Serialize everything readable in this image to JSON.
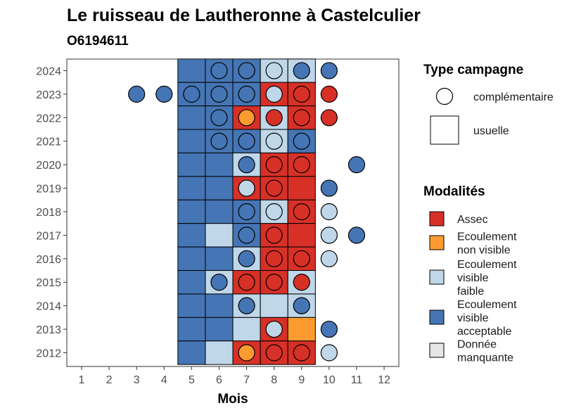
{
  "chart_data": {
    "type": "heatmap",
    "title": "Le ruisseau de Lautheronne à Castelculier",
    "subtitle": "O6194611",
    "xlabel": "Mois",
    "x_ticks": [
      "1",
      "2",
      "3",
      "4",
      "5",
      "6",
      "7",
      "8",
      "9",
      "10",
      "11",
      "12"
    ],
    "y_ticks": [
      "2012",
      "2013",
      "2014",
      "2015",
      "2016",
      "2017",
      "2018",
      "2019",
      "2020",
      "2021",
      "2022",
      "2023",
      "2024"
    ],
    "legend_shape": {
      "title": "Type campagne",
      "items": [
        {
          "key": "complementaire",
          "label": "complémentaire",
          "shape": "circle"
        },
        {
          "key": "usuelle",
          "label": "usuelle",
          "shape": "square"
        }
      ]
    },
    "legend_fill": {
      "title": "Modalités",
      "items": [
        {
          "key": "assec",
          "lines": [
            "Assec"
          ],
          "color": "#d73027"
        },
        {
          "key": "nonvisible",
          "lines": [
            "Ecoulement",
            "non visible"
          ],
          "color": "#fd9b30"
        },
        {
          "key": "faible",
          "lines": [
            "Ecoulement",
            "visible",
            "faible"
          ],
          "color": "#bfd7e8"
        },
        {
          "key": "acceptable",
          "lines": [
            "Ecoulement",
            "visible",
            "acceptable"
          ],
          "color": "#4575b4"
        },
        {
          "key": "manquante",
          "lines": [
            "Donnée",
            "manquante"
          ],
          "color": "#e6e6e6"
        }
      ]
    },
    "usuelle": [
      {
        "year": 2024,
        "months": [
          "acceptable",
          "acceptable",
          "acceptable",
          "faible",
          "faible"
        ]
      },
      {
        "year": 2023,
        "months": [
          "acceptable",
          "acceptable",
          "acceptable",
          "assec",
          "assec"
        ]
      },
      {
        "year": 2022,
        "months": [
          "acceptable",
          "acceptable",
          "assec",
          "faible",
          "assec"
        ]
      },
      {
        "year": 2021,
        "months": [
          "acceptable",
          "acceptable",
          "acceptable",
          "faible",
          "acceptable"
        ]
      },
      {
        "year": 2020,
        "months": [
          "acceptable",
          "acceptable",
          "faible",
          "assec",
          "assec"
        ]
      },
      {
        "year": 2019,
        "months": [
          "acceptable",
          "acceptable",
          "assec",
          "assec",
          "assec"
        ]
      },
      {
        "year": 2018,
        "months": [
          "acceptable",
          "acceptable",
          "acceptable",
          "faible",
          "assec"
        ]
      },
      {
        "year": 2017,
        "months": [
          "acceptable",
          "faible",
          "acceptable",
          "assec",
          "assec"
        ]
      },
      {
        "year": 2016,
        "months": [
          "acceptable",
          "acceptable",
          "faible",
          "assec",
          "assec"
        ]
      },
      {
        "year": 2015,
        "months": [
          "acceptable",
          "faible",
          "assec",
          "assec",
          "faible"
        ]
      },
      {
        "year": 2014,
        "months": [
          "acceptable",
          "acceptable",
          "faible",
          "faible",
          "faible"
        ]
      },
      {
        "year": 2013,
        "months": [
          "acceptable",
          "acceptable",
          "faible",
          "assec",
          "nonvisible"
        ]
      },
      {
        "year": 2012,
        "months": [
          "acceptable",
          "faible",
          "assec",
          "assec",
          "assec"
        ]
      }
    ],
    "usuelle_start_month": 5,
    "complementaire": [
      {
        "year": 2024,
        "month": 6,
        "m": "acceptable"
      },
      {
        "year": 2024,
        "month": 7,
        "m": "acceptable"
      },
      {
        "year": 2024,
        "month": 8,
        "m": "faible"
      },
      {
        "year": 2024,
        "month": 9,
        "m": "acceptable"
      },
      {
        "year": 2024,
        "month": 10,
        "m": "acceptable"
      },
      {
        "year": 2023,
        "month": 3,
        "m": "acceptable"
      },
      {
        "year": 2023,
        "month": 4,
        "m": "acceptable"
      },
      {
        "year": 2023,
        "month": 5,
        "m": "acceptable"
      },
      {
        "year": 2023,
        "month": 6,
        "m": "acceptable"
      },
      {
        "year": 2023,
        "month": 7,
        "m": "acceptable"
      },
      {
        "year": 2023,
        "month": 8,
        "m": "faible"
      },
      {
        "year": 2023,
        "month": 9,
        "m": "assec"
      },
      {
        "year": 2023,
        "month": 10,
        "m": "assec"
      },
      {
        "year": 2022,
        "month": 6,
        "m": "acceptable"
      },
      {
        "year": 2022,
        "month": 7,
        "m": "nonvisible"
      },
      {
        "year": 2022,
        "month": 8,
        "m": "assec"
      },
      {
        "year": 2022,
        "month": 9,
        "m": "assec"
      },
      {
        "year": 2022,
        "month": 10,
        "m": "assec"
      },
      {
        "year": 2021,
        "month": 6,
        "m": "acceptable"
      },
      {
        "year": 2021,
        "month": 7,
        "m": "acceptable"
      },
      {
        "year": 2021,
        "month": 8,
        "m": "faible"
      },
      {
        "year": 2021,
        "month": 9,
        "m": "acceptable"
      },
      {
        "year": 2020,
        "month": 7,
        "m": "acceptable"
      },
      {
        "year": 2020,
        "month": 8,
        "m": "assec"
      },
      {
        "year": 2020,
        "month": 9,
        "m": "assec"
      },
      {
        "year": 2020,
        "month": 11,
        "m": "acceptable"
      },
      {
        "year": 2019,
        "month": 7,
        "m": "faible"
      },
      {
        "year": 2019,
        "month": 8,
        "m": "assec"
      },
      {
        "year": 2019,
        "month": 10,
        "m": "acceptable"
      },
      {
        "year": 2018,
        "month": 7,
        "m": "acceptable"
      },
      {
        "year": 2018,
        "month": 8,
        "m": "faible"
      },
      {
        "year": 2018,
        "month": 9,
        "m": "assec"
      },
      {
        "year": 2018,
        "month": 10,
        "m": "faible"
      },
      {
        "year": 2017,
        "month": 7,
        "m": "acceptable"
      },
      {
        "year": 2017,
        "month": 8,
        "m": "assec"
      },
      {
        "year": 2017,
        "month": 10,
        "m": "faible"
      },
      {
        "year": 2017,
        "month": 11,
        "m": "acceptable"
      },
      {
        "year": 2016,
        "month": 7,
        "m": "acceptable"
      },
      {
        "year": 2016,
        "month": 8,
        "m": "assec"
      },
      {
        "year": 2016,
        "month": 9,
        "m": "assec"
      },
      {
        "year": 2016,
        "month": 10,
        "m": "faible"
      },
      {
        "year": 2015,
        "month": 6,
        "m": "acceptable"
      },
      {
        "year": 2015,
        "month": 7,
        "m": "assec"
      },
      {
        "year": 2015,
        "month": 8,
        "m": "assec"
      },
      {
        "year": 2015,
        "month": 9,
        "m": "assec"
      },
      {
        "year": 2014,
        "month": 7,
        "m": "acceptable"
      },
      {
        "year": 2014,
        "month": 9,
        "m": "acceptable"
      },
      {
        "year": 2013,
        "month": 8,
        "m": "faible"
      },
      {
        "year": 2013,
        "month": 10,
        "m": "acceptable"
      },
      {
        "year": 2012,
        "month": 7,
        "m": "nonvisible"
      },
      {
        "year": 2012,
        "month": 8,
        "m": "assec"
      },
      {
        "year": 2012,
        "month": 9,
        "m": "assec"
      },
      {
        "year": 2012,
        "month": 10,
        "m": "faible"
      }
    ]
  }
}
